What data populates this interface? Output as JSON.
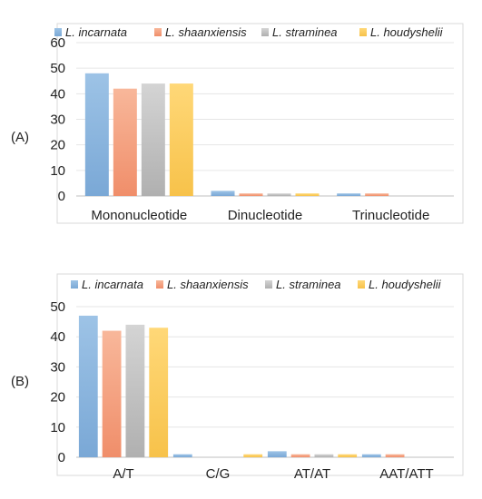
{
  "chart_data": [
    {
      "type": "bar",
      "panel_label": "(A)",
      "categories": [
        "Mononucleotide",
        "Dinucleotide",
        "Trinucleotide"
      ],
      "series": [
        {
          "name": "L. incarnata",
          "values": [
            48,
            2,
            1
          ]
        },
        {
          "name": "L. shaanxiensis",
          "values": [
            42,
            1,
            1
          ]
        },
        {
          "name": "L. straminea",
          "values": [
            44,
            1,
            0
          ]
        },
        {
          "name": "L. houdyshelii",
          "values": [
            44,
            1,
            0
          ]
        }
      ],
      "ylim": [
        0,
        60
      ],
      "yticks": [
        0,
        10,
        20,
        30,
        40,
        50,
        60
      ],
      "grid": true,
      "legend": "top"
    },
    {
      "type": "bar",
      "panel_label": "(B)",
      "categories": [
        "A/T",
        "C/G",
        "AT/AT",
        "AAT/ATT"
      ],
      "series": [
        {
          "name": "L. incarnata",
          "values": [
            47,
            1,
            2,
            1
          ]
        },
        {
          "name": "L. shaanxiensis",
          "values": [
            42,
            0,
            1,
            1
          ]
        },
        {
          "name": "L. straminea",
          "values": [
            44,
            0,
            1,
            0
          ]
        },
        {
          "name": "L. houdyshelii",
          "values": [
            43,
            1,
            1,
            0
          ]
        }
      ],
      "ylim": [
        0,
        50
      ],
      "yticks": [
        0,
        10,
        20,
        30,
        40,
        50
      ],
      "grid": true,
      "legend": "top"
    }
  ],
  "colors": {
    "series": [
      [
        "#9dc3e6",
        "#7aa8d6"
      ],
      [
        "#f8b79a",
        "#f08e6a"
      ],
      [
        "#d4d4d4",
        "#b0b0b0"
      ],
      [
        "#ffd878",
        "#f7c24a"
      ]
    ],
    "grid": "#e6e6e6",
    "axis": "#bfbfbf",
    "frame": "#d9d9d9"
  }
}
